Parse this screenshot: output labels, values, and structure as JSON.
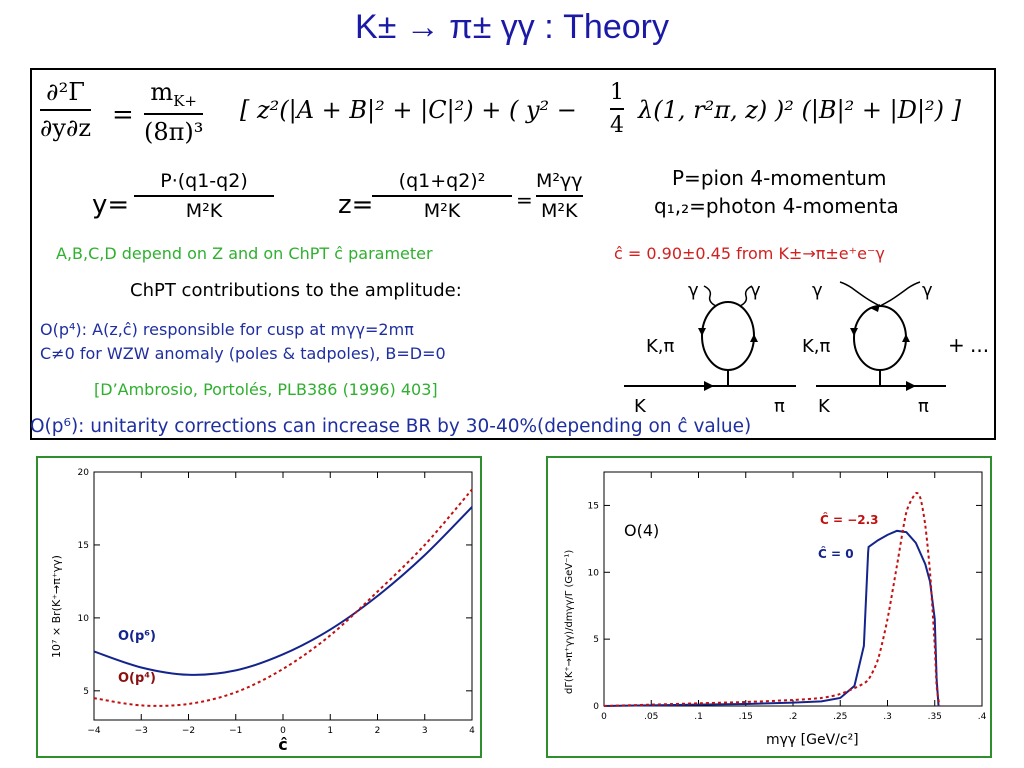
{
  "slide": {
    "title": "K± → π± γγ : Theory"
  },
  "box": {
    "formula_lhs_num": "∂²Γ",
    "formula_lhs_den": "∂y∂z",
    "formula_eq": "=",
    "formula_pref_num": "m",
    "formula_pref_num_sub": "K+",
    "formula_pref_den": "(8π)³",
    "formula_body": "[ z²(|A + B|² + |C|²) + ( y² −",
    "formula_quarter_num": "1",
    "formula_quarter_den": "4",
    "formula_tail": "λ(1, r²π, z) )² (|B|² + |D|²) ]",
    "y_label": "y=",
    "y_num": "P·(q1-q2)",
    "y_den": "M²K",
    "z_label": "z=",
    "z_num": "(q1+q2)²",
    "z_den": "M²K",
    "z_eq": "=",
    "z2_num": "M²γγ",
    "z2_den": "M²K",
    "def1": "P=pion 4-momentum",
    "def2": "q₁,₂=photon 4-momenta",
    "green_line": "A,B,C,D depend on Z and on ChPT ĉ parameter",
    "red_line": "ĉ = 0.90±0.45 from K±→π±e⁺e⁻γ",
    "chpt_line": "ChPT contributions to the amplitude:",
    "op4_line1": "O(p⁴): A(z,ĉ) responsible for cusp at mγγ=2mπ",
    "op4_line2": "C≠0 for WZW anomaly (poles & tadpoles), B=D=0",
    "ref_line": "[D’Ambrosio, Portolés, PLB386 (1996) 403]",
    "op6_line": "O(p⁶): unitarity corrections can increase BR by 30-40%(depending on ĉ value)",
    "diag_gamma": "γ",
    "diag_kpi": "K,π",
    "diag_K": "K",
    "diag_pi": "π",
    "diag_plus": "+",
    "diag_dots": "..."
  },
  "left_chart": {
    "ylabel": "10⁷ × Br(K⁺→π⁺γγ)",
    "xlabel": "ĉ",
    "label_p6": "O(p⁶)",
    "label_p4": "O(p⁴)",
    "x_ticks": [
      "−4",
      "−3",
      "−2",
      "−1",
      "0",
      "1",
      "2",
      "3",
      "4"
    ],
    "y_ticks": [
      "5",
      "10",
      "15",
      "20"
    ]
  },
  "right_chart": {
    "ylabel": "dΓ(K⁺→π⁺γγ)/dmγγ/Γ (GeV⁻¹)",
    "xlabel": "mγγ   [GeV/c²]",
    "inset": "O(4)",
    "label_c_m23": "Ĉ = −2.3",
    "label_c_0": "Ĉ = 0",
    "x_ticks": [
      "0",
      ".05",
      ".1",
      ".15",
      ".2",
      ".25",
      ".3",
      ".35",
      ".4"
    ],
    "y_ticks": [
      "0",
      "5",
      "10",
      "15"
    ]
  },
  "colors": {
    "title": "#1a1aa6",
    "green": "#2fb02f",
    "red": "#d12020",
    "blue": "#1f2fa0",
    "curve_blue": "#14248c",
    "curve_red": "#c21010",
    "frame_green": "#2f8f2f"
  },
  "chart_data": [
    {
      "type": "line",
      "xlabel": "ĉ",
      "ylabel": "10⁷ × Br(K⁺→π⁺γγ)",
      "xlim": [
        -4,
        4
      ],
      "ylim": [
        3,
        20
      ],
      "series": [
        {
          "name": "O(p⁶)",
          "x": [
            -4,
            -3,
            -2,
            -1,
            0,
            1,
            2,
            3,
            4
          ],
          "values": [
            7.7,
            6.6,
            6.1,
            6.4,
            7.5,
            9.2,
            11.5,
            14.3,
            17.6
          ]
        },
        {
          "name": "O(p⁴)",
          "x": [
            -4,
            -3,
            -2,
            -1,
            0,
            1,
            2,
            3,
            4
          ],
          "values": [
            4.5,
            4.0,
            4.1,
            4.9,
            6.5,
            8.8,
            11.8,
            15.0,
            18.8
          ]
        }
      ]
    },
    {
      "type": "line",
      "xlabel": "mγγ [GeV/c²]",
      "ylabel": "dΓ(K⁺→π⁺γγ)/dmγγ/Γ (GeV⁻¹)",
      "xlim": [
        0,
        0.4
      ],
      "ylim": [
        0,
        17.5
      ],
      "series": [
        {
          "name": "Ĉ = 0",
          "x": [
            0,
            0.05,
            0.1,
            0.15,
            0.2,
            0.23,
            0.25,
            0.265,
            0.275,
            0.2795,
            0.28,
            0.29,
            0.3,
            0.31,
            0.32,
            0.33,
            0.34,
            0.345,
            0.35,
            0.352,
            0.354
          ],
          "values": [
            0,
            0.05,
            0.1,
            0.15,
            0.25,
            0.35,
            0.6,
            1.5,
            4.5,
            11.5,
            11.9,
            12.4,
            12.8,
            13.1,
            13.0,
            12.2,
            10.6,
            9.3,
            6.5,
            2.0,
            0
          ]
        },
        {
          "name": "Ĉ = −2.3",
          "x": [
            0,
            0.05,
            0.1,
            0.15,
            0.2,
            0.23,
            0.25,
            0.27,
            0.28,
            0.29,
            0.3,
            0.31,
            0.32,
            0.33,
            0.335,
            0.34,
            0.345,
            0.35,
            0.352,
            0.355
          ],
          "values": [
            0,
            0.1,
            0.2,
            0.3,
            0.45,
            0.6,
            0.9,
            1.5,
            2.0,
            3.5,
            6.5,
            10.5,
            14.5,
            15.9,
            15.5,
            13.5,
            10.0,
            4.5,
            1.5,
            0
          ]
        }
      ]
    }
  ]
}
